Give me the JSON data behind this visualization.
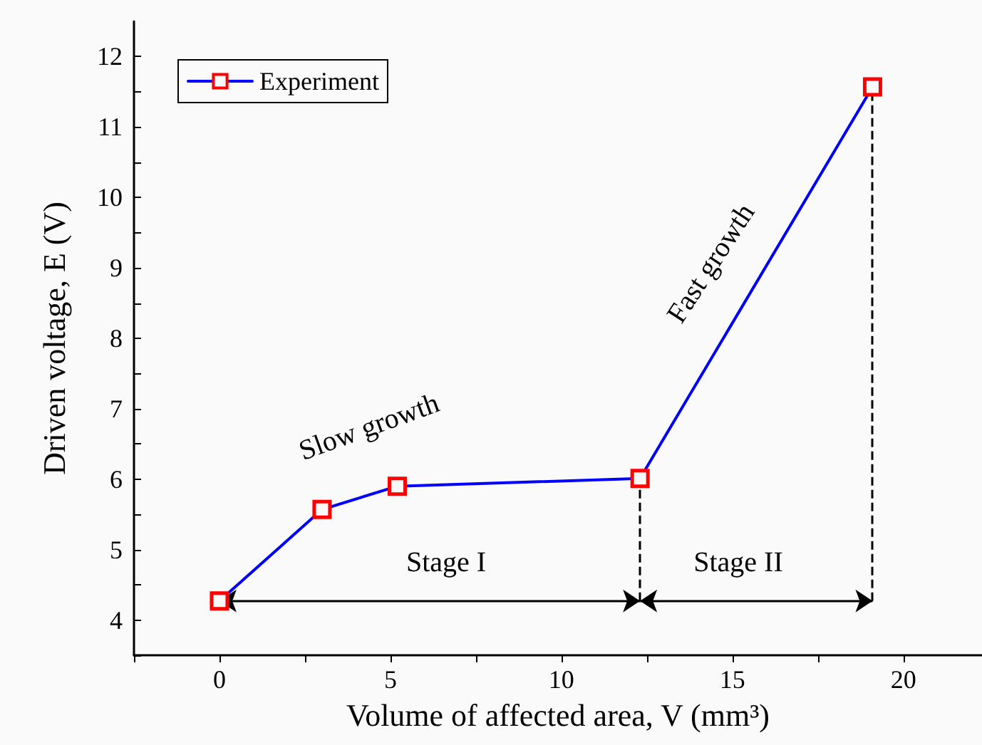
{
  "chart_data": {
    "type": "line",
    "xlabel": "Volume of affected area, V (mm³)",
    "ylabel": "Driven voltage, E (V)",
    "x": [
      0,
      3,
      5.2,
      12.3,
      19.1
    ],
    "series": [
      {
        "name": "Experiment",
        "color": "#0000ff",
        "colors": [
          "#ff0000",
          "#ff0000",
          "#ff0000",
          "#ff0000",
          "#ff0000"
        ],
        "values": [
          4.27,
          5.57,
          5.9,
          6.01,
          11.57
        ]
      }
    ],
    "xlim": [
      -2.5,
      22.3
    ],
    "ylim": [
      3.5,
      12.5
    ],
    "xticks": [
      {
        "value": -2.5,
        "label": null
      },
      0,
      {
        "value": 2.5,
        "label": null
      },
      5,
      {
        "value": 7.5,
        "label": null
      },
      10,
      {
        "value": 12.5,
        "label": null
      },
      15,
      {
        "value": 17.5,
        "label": null
      },
      20
    ],
    "yticks": [
      {
        "value": 3.5,
        "label": null
      },
      4,
      {
        "value": 4.5,
        "label": null
      },
      5,
      {
        "value": 5.5,
        "label": null
      },
      6,
      {
        "value": 6.5,
        "label": null
      },
      7,
      {
        "value": 7.5,
        "label": null
      },
      8,
      {
        "value": 8.5,
        "label": null
      },
      9,
      {
        "value": 9.5,
        "label": null
      },
      10,
      {
        "value": 10.5,
        "label": null
      },
      11,
      {
        "value": 11.5,
        "label": null
      },
      12
    ],
    "ref_lines": [
      {
        "axis": "x",
        "value": 12.3,
        "color": "#000000",
        "line_style": "dashed"
      },
      {
        "axis": "x",
        "value": 19.1,
        "color": "#000000",
        "line_style": "dashed"
      }
    ],
    "annotations": [
      "Slow growth",
      "Fast growth",
      "Stage I",
      "Stage II"
    ],
    "marker": "square",
    "line_style": "solid",
    "legend": "top left",
    "grid": false
  }
}
